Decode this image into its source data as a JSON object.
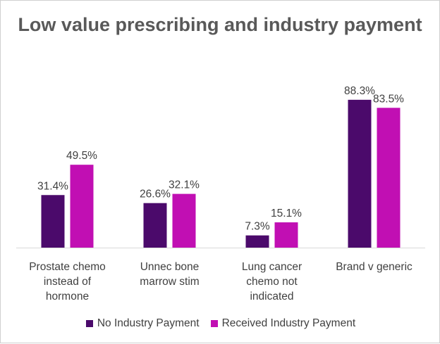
{
  "colors": {
    "no_payment": "#4b0a6b",
    "received_payment": "#c10fb3"
  },
  "chart_data": {
    "type": "bar",
    "title": "Low value prescribing and industry payment",
    "xlabel": "",
    "ylabel": "",
    "ylim": [
      0,
      100
    ],
    "grid": false,
    "legend_position": "bottom",
    "categories": [
      [
        "Prostate chemo",
        "instead of",
        "hormone"
      ],
      [
        "Unnec bone",
        "marrow stim"
      ],
      [
        "Lung cancer",
        "chemo not",
        "indicated"
      ],
      [
        "Brand v generic"
      ]
    ],
    "series": [
      {
        "name": "No Industry Payment",
        "values": [
          31.4,
          26.6,
          7.3,
          88.3
        ],
        "labels": [
          "31.4%",
          "26.6%",
          "7.3%",
          "88.3%"
        ]
      },
      {
        "name": "Received Industry Payment",
        "values": [
          49.5,
          32.1,
          15.1,
          83.5
        ],
        "labels": [
          "49.5%",
          "32.1%",
          "15.1%",
          "83.5%"
        ]
      }
    ]
  }
}
